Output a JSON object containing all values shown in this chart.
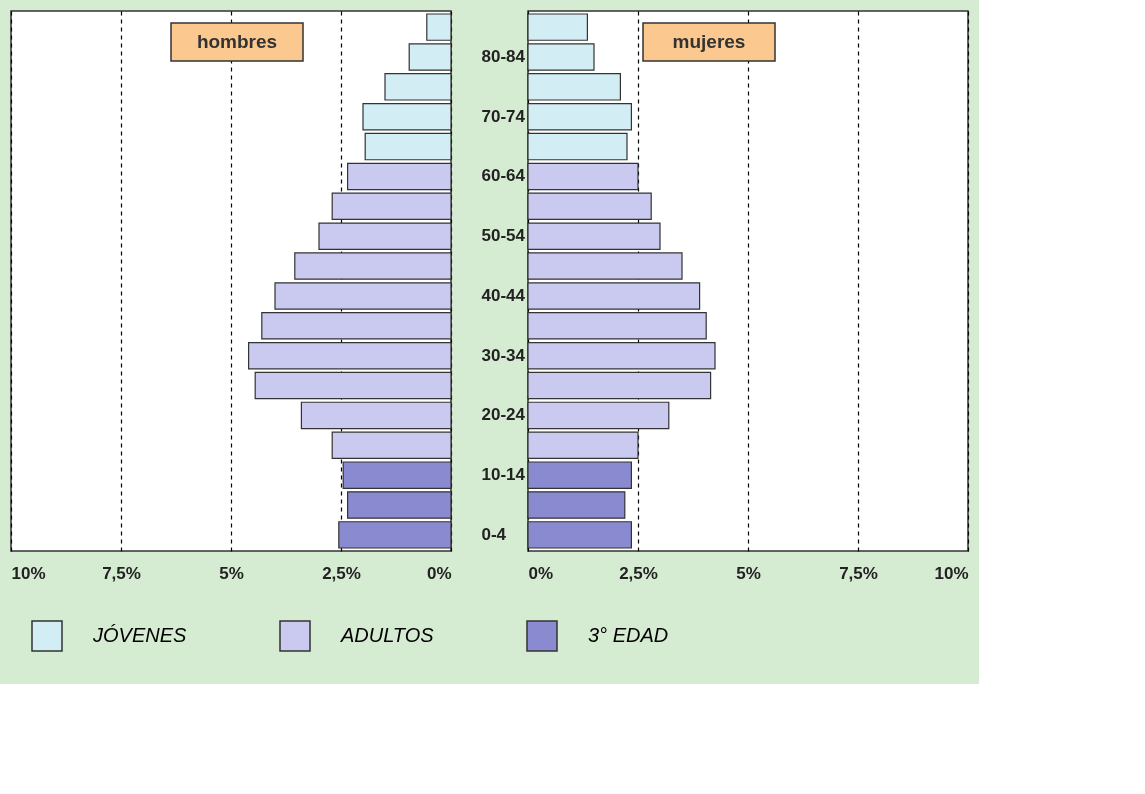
{
  "chart_data": [
    {
      "type": "bar",
      "orientation": "horizontal",
      "title": "hombres",
      "categories": [
        null,
        "80-84",
        null,
        "70-74",
        null,
        "60-64",
        null,
        "50-54",
        null,
        "40-44",
        null,
        "30-34",
        null,
        "20-24",
        null,
        "10-14",
        null,
        "0-4"
      ],
      "series": [
        {
          "name": "JÓVENES",
          "color": "#d2eef4",
          "values": [
            0.55,
            0.95,
            1.5,
            2.0,
            1.95,
            null,
            null,
            null,
            null,
            null,
            null,
            null,
            null,
            null,
            null,
            null,
            null,
            null
          ]
        },
        {
          "name": "ADULTOS",
          "color": "#cacaf0",
          "values": [
            null,
            null,
            null,
            null,
            null,
            2.35,
            2.7,
            3.0,
            3.55,
            4.0,
            4.3,
            4.6,
            4.45,
            3.4,
            2.7,
            null,
            null,
            null
          ]
        },
        {
          "name": "3° EDAD",
          "color": "#8a8ad0",
          "values": [
            null,
            null,
            null,
            null,
            null,
            null,
            null,
            null,
            null,
            null,
            null,
            null,
            null,
            null,
            null,
            2.45,
            2.35,
            2.55
          ]
        }
      ],
      "xlim": [
        10,
        0
      ],
      "xticks": [
        {
          "value": 10,
          "label": "10%"
        },
        {
          "value": 7.5,
          "label": "7,5%"
        },
        {
          "value": 5,
          "label": "5%"
        },
        {
          "value": 2.5,
          "label": "2,5%"
        },
        {
          "value": 0,
          "label": "0%"
        }
      ],
      "grid": "x",
      "legend": "bottom"
    },
    {
      "type": "bar",
      "orientation": "horizontal",
      "title": "mujeres",
      "categories": [
        null,
        null,
        null,
        null,
        null,
        null,
        null,
        null,
        null,
        null,
        null,
        null,
        null,
        null,
        null,
        null,
        null,
        null
      ],
      "series": [
        {
          "name": "JÓVENES",
          "color": "#d2eef4",
          "values": [
            1.35,
            1.5,
            2.1,
            2.35,
            2.25,
            null,
            null,
            null,
            null,
            null,
            null,
            null,
            null,
            null,
            null,
            null,
            null,
            null
          ]
        },
        {
          "name": "ADULTOS",
          "color": "#cacaf0",
          "values": [
            null,
            null,
            null,
            null,
            null,
            2.5,
            2.8,
            3.0,
            3.5,
            3.9,
            4.05,
            4.25,
            4.15,
            3.2,
            2.5,
            null,
            null,
            null
          ]
        },
        {
          "name": "3° EDAD",
          "color": "#8a8ad0",
          "values": [
            null,
            null,
            null,
            null,
            null,
            null,
            null,
            null,
            null,
            null,
            null,
            null,
            null,
            null,
            null,
            2.35,
            2.2,
            2.35
          ]
        }
      ],
      "xlim": [
        0,
        10
      ],
      "xticks": [
        {
          "value": 0,
          "label": "0%"
        },
        {
          "value": 2.5,
          "label": "2,5%"
        },
        {
          "value": 5,
          "label": "5%"
        },
        {
          "value": 7.5,
          "label": "7,5%"
        },
        {
          "value": 10,
          "label": "10%"
        }
      ],
      "grid": "x",
      "legend": "bottom",
      "tick_labels": "x"
    }
  ]
}
